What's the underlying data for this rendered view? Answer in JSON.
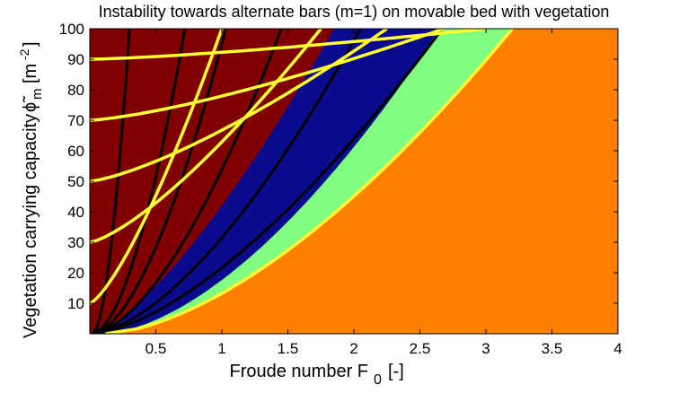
{
  "chart_data": {
    "type": "heatmap",
    "title": "Instability towards alternate bars (m=1) on movable bed with vegetation",
    "xlabel_main": "Froude number F",
    "xlabel_sub": "0",
    "xlabel_unit": "[-]",
    "ylabel_main": "Vegetation carrying capacity",
    "ylabel_symbol": "ϕ̃",
    "ylabel_symbol_sub": "m",
    "ylabel_unit_open": "[m",
    "ylabel_unit_exp": "-2",
    "ylabel_unit_close": "]",
    "xlim": [
      0,
      4
    ],
    "ylim": [
      0,
      100
    ],
    "x_ticks": [
      0.5,
      1,
      1.5,
      2,
      2.5,
      3,
      3.5,
      4
    ],
    "x_tick_labels": [
      "0.5",
      "1",
      "1.5",
      "2",
      "2.5",
      "3",
      "3.5",
      "4"
    ],
    "y_ticks": [
      10,
      20,
      30,
      40,
      50,
      60,
      70,
      80,
      90,
      100
    ],
    "y_tick_labels": [
      "10",
      "20",
      "30",
      "40",
      "50",
      "60",
      "70",
      "80",
      "90",
      "100"
    ],
    "grid": false,
    "colors": {
      "dark_red_region": "#800000",
      "blue_region": "#0a0a8c",
      "green_region": "#80ff80",
      "orange_region": "#ff8000",
      "yellow_curves": "#ffff33",
      "black_curves": "#000000"
    },
    "regions": [
      {
        "color_key": "dark_red_region",
        "boundary_x_at_y100": 1.85,
        "boundary_x_at_y0": 0.02
      },
      {
        "color_key": "blue_region",
        "boundary_x_at_y100": 2.65,
        "boundary_x_at_y0": 0.1
      },
      {
        "color_key": "green_region",
        "boundary_x_at_y100": 3.2,
        "boundary_x_at_y0": 0.1
      },
      {
        "color_key": "orange_region"
      }
    ],
    "black_curves": [
      {
        "x_at_y100": 0.3
      },
      {
        "x_at_y100": 0.72
      },
      {
        "x_at_y100": 1.03
      },
      {
        "x_at_y100": 1.45
      },
      {
        "x_at_y100": 2.05
      },
      {
        "x_at_y100": 2.67
      }
    ],
    "yellow_curves": [
      {
        "y_start": 10,
        "x_at_y100": 1.0
      },
      {
        "y_start": 30,
        "x_at_y100": 1.75
      },
      {
        "y_start": 50,
        "x_at_y100": 2.25
      },
      {
        "y_start": 70,
        "x_at_y100": 2.68
      },
      {
        "y_start": 90,
        "x_at_y100": 3.0
      },
      {
        "y_start": 0,
        "x_start": 0.12,
        "x_at_y100": 3.2
      }
    ]
  }
}
